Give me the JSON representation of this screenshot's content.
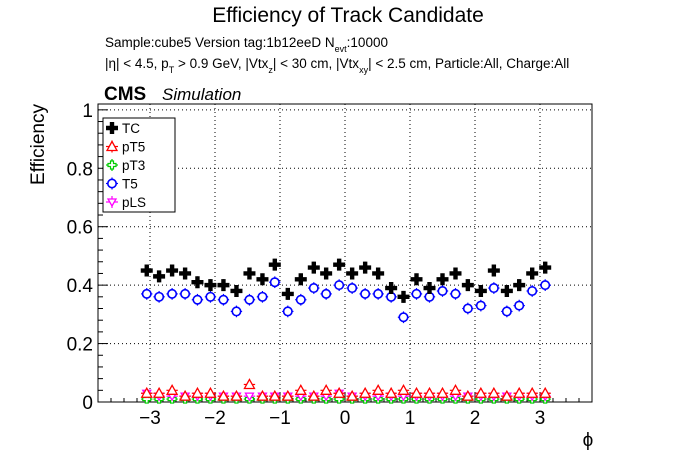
{
  "header": {
    "title": "Efficiency of Track Candidate",
    "info_parts": [
      "Sample:cube5   Version tag:1b12eeD  N",
      "evt",
      ":10000"
    ],
    "cuts_parts": [
      "|η| < 4.5, p",
      "T",
      " > 0.9 GeV, |Vtx",
      "z",
      "| < 30 cm, |Vtx",
      "xy",
      "| < 2.5 cm, Particle:All, Charge:All"
    ],
    "cms_label": "CMS",
    "simulation_label": "Simulation"
  },
  "chart_data": {
    "type": "scatter",
    "title": "Efficiency of Track Candidate",
    "xlabel": "ϕ",
    "ylabel": "Efficiency",
    "xlim": [
      -3.8,
      3.8
    ],
    "ylim": [
      0,
      1.02
    ],
    "xticks": [
      -3,
      -2,
      -1,
      0,
      1,
      2,
      3
    ],
    "xtick_labels": [
      "−3",
      "−2",
      "−1",
      "0",
      "1",
      "2",
      "3"
    ],
    "yticks": [
      0,
      0.2,
      0.4,
      0.6,
      0.8,
      1
    ],
    "ytick_labels": [
      "0",
      "0.2",
      "0.4",
      "0.6",
      "0.8",
      "1"
    ],
    "grid": true,
    "legend_position": "top-left",
    "x": [
      -3.05,
      -2.86,
      -2.66,
      -2.46,
      -2.27,
      -2.07,
      -1.87,
      -1.67,
      -1.47,
      -1.27,
      -1.08,
      -0.88,
      -0.68,
      -0.48,
      -0.29,
      -0.09,
      0.11,
      0.31,
      0.51,
      0.71,
      0.9,
      1.1,
      1.3,
      1.5,
      1.7,
      1.89,
      2.09,
      2.29,
      2.49,
      2.68,
      2.88,
      3.08
    ],
    "series": [
      {
        "name": "TC",
        "color": "#000000",
        "marker": "cross",
        "values": [
          0.45,
          0.43,
          0.45,
          0.44,
          0.41,
          0.4,
          0.4,
          0.38,
          0.44,
          0.42,
          0.47,
          0.37,
          0.42,
          0.46,
          0.44,
          0.47,
          0.44,
          0.46,
          0.44,
          0.39,
          0.36,
          0.42,
          0.39,
          0.42,
          0.44,
          0.4,
          0.38,
          0.45,
          0.38,
          0.4,
          0.44,
          0.46
        ],
        "errors": [
          0.02,
          0.02,
          0.02,
          0.02,
          0.02,
          0.02,
          0.02,
          0.02,
          0.02,
          0.02,
          0.02,
          0.02,
          0.02,
          0.02,
          0.02,
          0.02,
          0.02,
          0.02,
          0.02,
          0.02,
          0.02,
          0.02,
          0.02,
          0.02,
          0.02,
          0.02,
          0.02,
          0.02,
          0.02,
          0.02,
          0.02,
          0.02
        ]
      },
      {
        "name": "pT5",
        "color": "#ff0000",
        "marker": "open-triangle",
        "values": [
          0.03,
          0.03,
          0.04,
          0.02,
          0.03,
          0.03,
          0.02,
          0.02,
          0.06,
          0.02,
          0.02,
          0.02,
          0.04,
          0.02,
          0.04,
          0.03,
          0.02,
          0.03,
          0.04,
          0.03,
          0.04,
          0.03,
          0.03,
          0.03,
          0.04,
          0.02,
          0.03,
          0.03,
          0.02,
          0.03,
          0.03,
          0.03
        ],
        "errors": [
          0.008,
          0.008,
          0.008,
          0.008,
          0.008,
          0.008,
          0.008,
          0.008,
          0.008,
          0.008,
          0.008,
          0.008,
          0.008,
          0.008,
          0.008,
          0.008,
          0.008,
          0.008,
          0.008,
          0.008,
          0.008,
          0.008,
          0.008,
          0.008,
          0.008,
          0.008,
          0.008,
          0.008,
          0.008,
          0.008,
          0.008,
          0.008
        ]
      },
      {
        "name": "pT3",
        "color": "#00cc00",
        "marker": "open-cross",
        "values": [
          0.01,
          0.01,
          0.01,
          0.01,
          0.01,
          0.01,
          0.01,
          0.01,
          0.01,
          0.01,
          0.01,
          0.01,
          0.01,
          0.01,
          0.01,
          0.01,
          0.01,
          0.01,
          0.01,
          0.01,
          0.01,
          0.01,
          0.01,
          0.01,
          0.01,
          0.01,
          0.01,
          0.01,
          0.01,
          0.01,
          0.01,
          0.01
        ],
        "errors": [
          0.004,
          0.004,
          0.004,
          0.004,
          0.004,
          0.004,
          0.004,
          0.004,
          0.004,
          0.004,
          0.004,
          0.004,
          0.004,
          0.004,
          0.004,
          0.004,
          0.004,
          0.004,
          0.004,
          0.004,
          0.004,
          0.004,
          0.004,
          0.004,
          0.004,
          0.004,
          0.004,
          0.004,
          0.004,
          0.004,
          0.004,
          0.004
        ]
      },
      {
        "name": "T5",
        "color": "#0000ff",
        "marker": "open-circle",
        "values": [
          0.37,
          0.36,
          0.37,
          0.37,
          0.35,
          0.36,
          0.35,
          0.31,
          0.35,
          0.36,
          0.41,
          0.31,
          0.35,
          0.39,
          0.37,
          0.4,
          0.39,
          0.37,
          0.37,
          0.36,
          0.29,
          0.37,
          0.36,
          0.38,
          0.37,
          0.32,
          0.33,
          0.39,
          0.31,
          0.33,
          0.38,
          0.4
        ],
        "errors": [
          0.02,
          0.02,
          0.02,
          0.02,
          0.02,
          0.02,
          0.02,
          0.02,
          0.02,
          0.02,
          0.02,
          0.02,
          0.02,
          0.02,
          0.02,
          0.02,
          0.02,
          0.02,
          0.02,
          0.02,
          0.02,
          0.02,
          0.02,
          0.02,
          0.02,
          0.02,
          0.02,
          0.02,
          0.02,
          0.02,
          0.02,
          0.02
        ]
      },
      {
        "name": "pLS",
        "color": "#ff00ff",
        "marker": "open-triangle-down",
        "values": [
          0.03,
          0.02,
          0.02,
          0.02,
          0.02,
          0.02,
          0.02,
          0.02,
          0.02,
          0.02,
          0.02,
          0.02,
          0.02,
          0.02,
          0.02,
          0.03,
          0.02,
          0.02,
          0.02,
          0.02,
          0.02,
          0.02,
          0.02,
          0.02,
          0.02,
          0.02,
          0.02,
          0.02,
          0.02,
          0.02,
          0.02,
          0.02
        ],
        "errors": [
          0.006,
          0.006,
          0.006,
          0.006,
          0.006,
          0.006,
          0.006,
          0.006,
          0.006,
          0.006,
          0.006,
          0.006,
          0.006,
          0.006,
          0.006,
          0.006,
          0.006,
          0.006,
          0.006,
          0.006,
          0.006,
          0.006,
          0.006,
          0.006,
          0.006,
          0.006,
          0.006,
          0.006,
          0.006,
          0.006,
          0.006,
          0.006
        ]
      }
    ]
  }
}
